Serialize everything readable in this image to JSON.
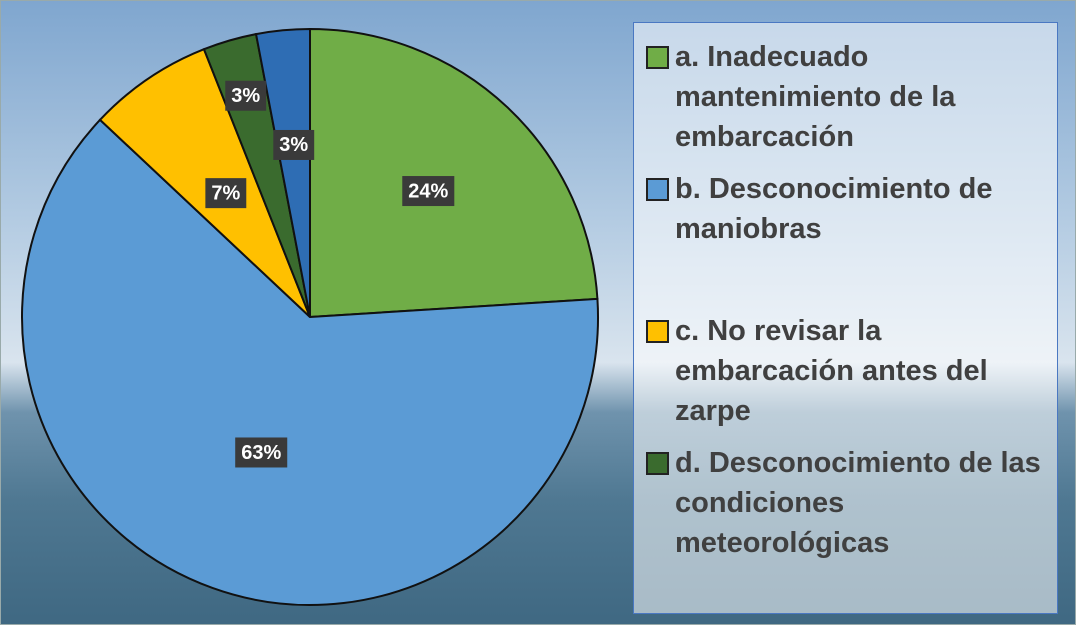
{
  "chart_data": {
    "type": "pie",
    "categories": [
      "a. Inadecuado mantenimiento de la embarcación",
      "b. Desconocimiento de maniobras",
      "c. No revisar la embarcación antes del zarpe",
      "d. Desconocimiento de las condiciones meteorológicas",
      null
    ],
    "values": [
      24,
      63,
      7,
      3,
      3
    ],
    "value_labels": [
      "24%",
      "63%",
      "7%",
      "3%",
      "3%"
    ],
    "colors": [
      "#70ad47",
      "#5b9bd5",
      "#ffc000",
      "#3a6b2e",
      "#2e6db4"
    ]
  }
}
